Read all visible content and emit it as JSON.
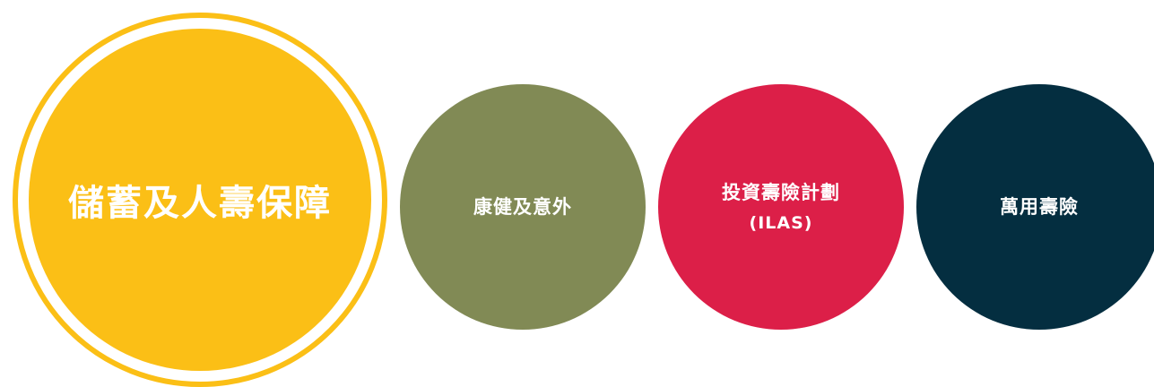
{
  "categories": [
    {
      "label": "儲蓄及人壽保障",
      "color": "#fbbf16",
      "selected": true
    },
    {
      "label": "康健及意外",
      "color": "#818a55",
      "selected": false
    },
    {
      "label": "投資壽險計劃",
      "sub": "(ILAS)",
      "color": "#dc1f48",
      "selected": false
    },
    {
      "label": "萬用壽險",
      "color": "#042e40",
      "selected": false
    }
  ]
}
